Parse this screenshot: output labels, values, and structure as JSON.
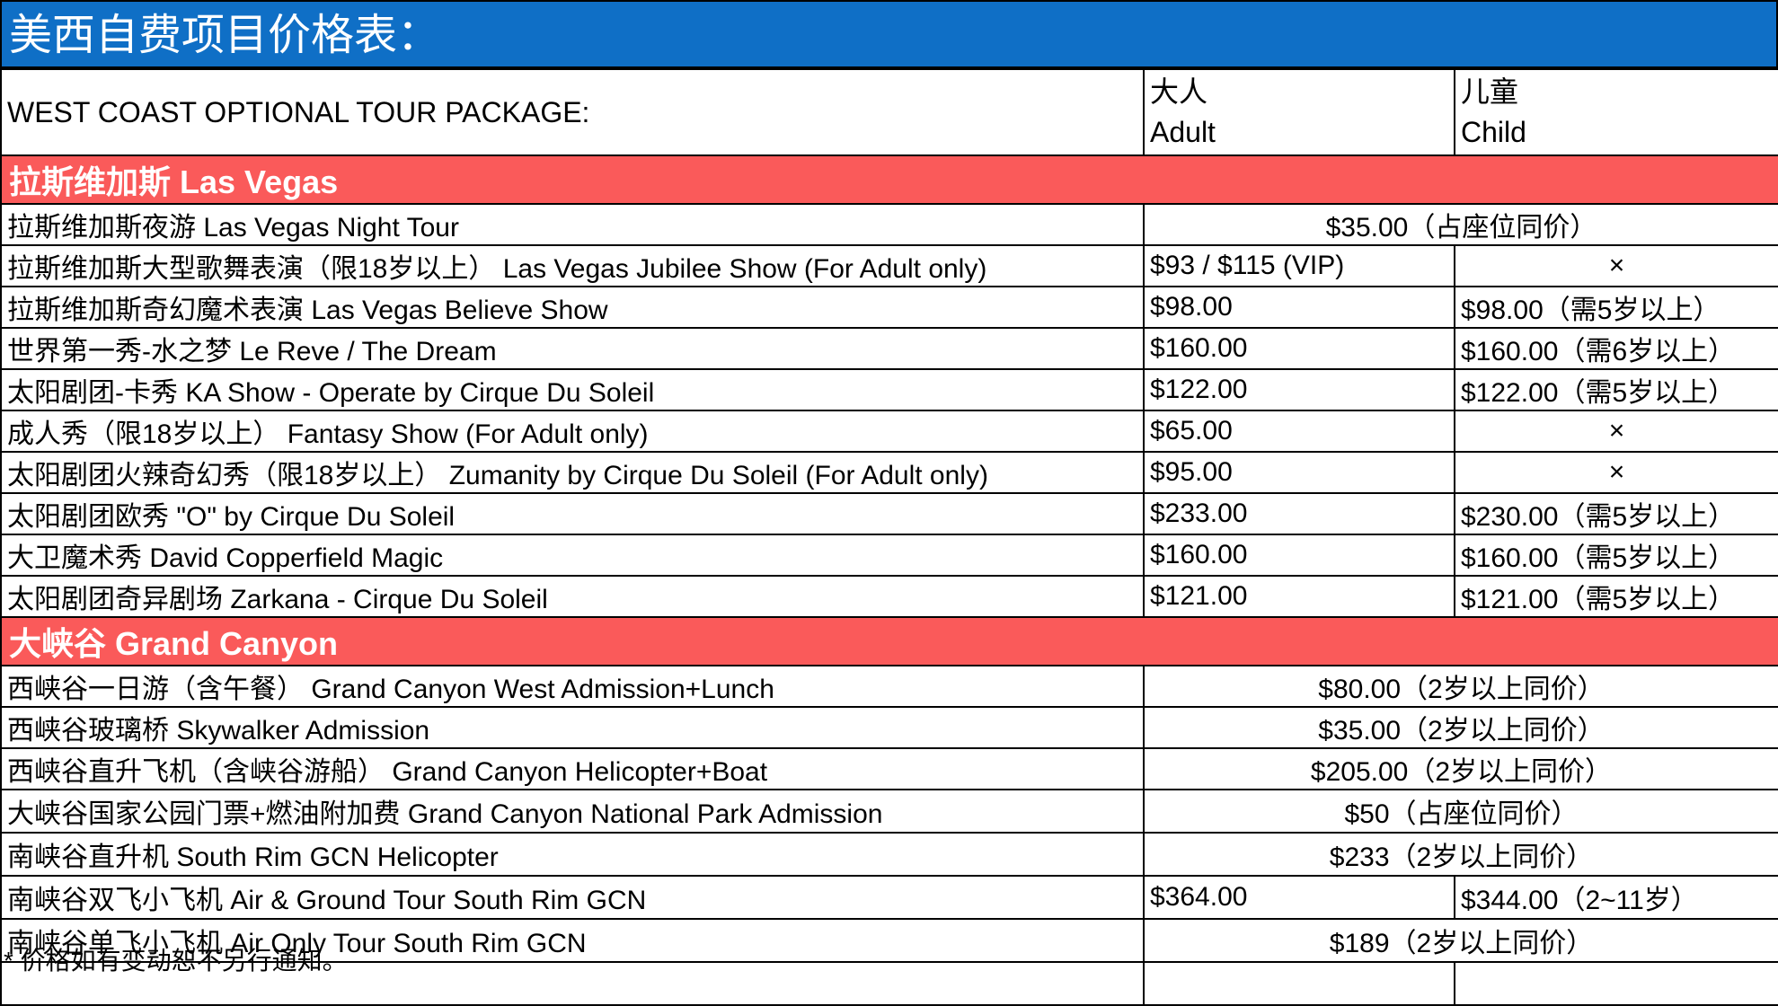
{
  "title": "美西自费项目价格表：",
  "header": {
    "package_label": "WEST COAST OPTIONAL TOUR PACKAGE:",
    "adult_cn": "大人",
    "adult_en": "Adult",
    "child_cn": "儿童",
    "child_en": "Child"
  },
  "sections": [
    {
      "name": "拉斯维加斯 Las Vegas",
      "rows": [
        {
          "item": "拉斯维加斯夜游 Las Vegas Night Tour",
          "merged": "$35.00（占座位同价）"
        },
        {
          "item": "拉斯维加斯大型歌舞表演（限18岁以上） Las Vegas Jubilee Show (For Adult only)",
          "adult": "$93 / $115 (VIP)",
          "child": "×"
        },
        {
          "item": "拉斯维加斯奇幻魔术表演 Las Vegas Believe Show",
          "adult": "$98.00",
          "child": "$98.00（需5岁以上）"
        },
        {
          "item": "世界第一秀-水之梦 Le Reve / The Dream",
          "adult": "$160.00",
          "child": "$160.00（需6岁以上）"
        },
        {
          "item": "太阳剧团-卡秀 KA Show - Operate by Cirque Du Soleil",
          "adult": "$122.00",
          "child": "$122.00（需5岁以上）"
        },
        {
          "item": "成人秀（限18岁以上） Fantasy Show (For Adult only)",
          "adult": "$65.00",
          "child": "×"
        },
        {
          "item": "太阳剧团火辣奇幻秀（限18岁以上） Zumanity by Cirque Du Soleil (For Adult only)",
          "adult": "$95.00",
          "child": "×"
        },
        {
          "item": "太阳剧团欧秀 \"O\" by Cirque Du Soleil",
          "adult": "$233.00",
          "child": "$230.00（需5岁以上）"
        },
        {
          "item": "大卫魔术秀 David Copperfield Magic",
          "adult": "$160.00",
          "child": "$160.00（需5岁以上）"
        },
        {
          "item": "太阳剧团奇异剧场 Zarkana - Cirque Du Soleil",
          "adult": "$121.00",
          "child": "$121.00（需5岁以上）"
        }
      ]
    },
    {
      "name": "大峡谷 Grand Canyon",
      "rows": [
        {
          "item": "西峡谷一日游（含午餐） Grand Canyon West Admission+Lunch",
          "merged": "$80.00（2岁以上同价）"
        },
        {
          "item": "西峡谷玻璃桥 Skywalker Admission",
          "merged": "$35.00（2岁以上同价）"
        },
        {
          "item": "西峡谷直升飞机（含峡谷游船） Grand Canyon Helicopter+Boat",
          "merged": "$205.00（2岁以上同价）"
        },
        {
          "item": "大峡谷国家公园门票+燃油附加费 Grand Canyon National Park Admission",
          "merged": "$50（占座位同价）"
        },
        {
          "item": "南峡谷直升机 South Rim GCN Helicopter",
          "merged": "$233（2岁以上同价）"
        },
        {
          "item": "南峡谷双飞小飞机 Air & Ground Tour South Rim GCN",
          "adult": "$364.00",
          "child": "$344.00（2~11岁）"
        },
        {
          "item": "南峡谷单飞小飞机 Air Only Tour South Rim GCN",
          "merged": "$189（2岁以上同价）"
        }
      ]
    }
  ],
  "footnote": "* 价格如有变动恕不另行通知。"
}
